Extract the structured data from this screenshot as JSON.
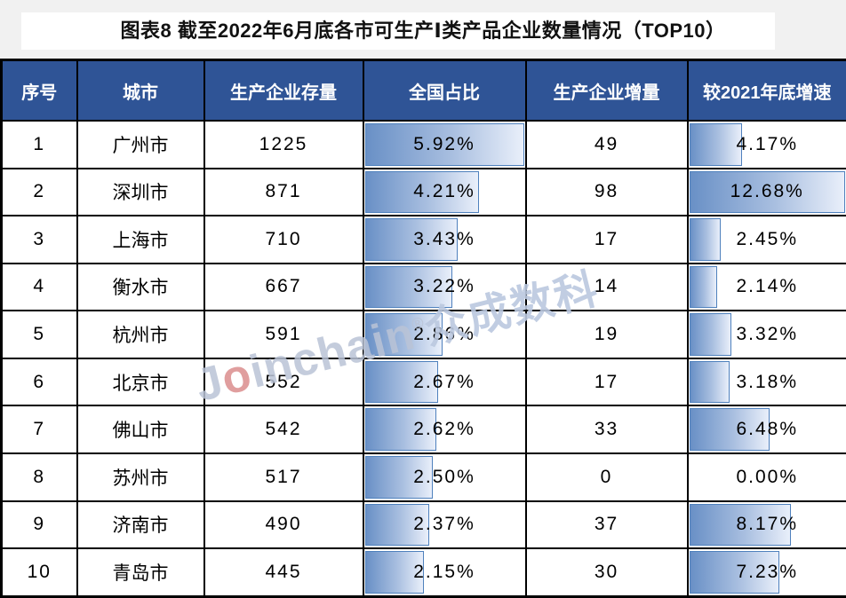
{
  "page": {
    "background": "#f1f1f1"
  },
  "header": {
    "title": "图表8 截至2022年6月底各市可生产Ⅰ类产品企业数量情况（TOP10）"
  },
  "watermark": {
    "latin_pre": "J",
    "latin_o": "o",
    "latin_post": "inchain",
    "reg": "®",
    "cn": "众成数科"
  },
  "colors": {
    "header_bg": "#2f5496",
    "header_text": "#ffffff",
    "grid_border": "#000000",
    "bar_border": "#4f81bd",
    "bar_gradient_start": "#6990c6",
    "bar_gradient_end": "#e9effa",
    "page_bg": "#f1f1f1"
  },
  "table": {
    "headers": [
      "序号",
      "城市",
      "生产企业存量",
      "全国占比",
      "生产企业增量",
      "较2021年底增速"
    ],
    "share_axis_max": 5.92,
    "growth_axis_max": 12.68,
    "rows": [
      {
        "rank": "1",
        "city": "广州市",
        "stock": "1225",
        "share_label": "5.92%",
        "share": 5.92,
        "increment": "49",
        "growth_label": "4.17%",
        "growth": 4.17
      },
      {
        "rank": "2",
        "city": "深圳市",
        "stock": "871",
        "share_label": "4.21%",
        "share": 4.21,
        "increment": "98",
        "growth_label": "12.68%",
        "growth": 12.68
      },
      {
        "rank": "3",
        "city": "上海市",
        "stock": "710",
        "share_label": "3.43%",
        "share": 3.43,
        "increment": "17",
        "growth_label": "2.45%",
        "growth": 2.45
      },
      {
        "rank": "4",
        "city": "衡水市",
        "stock": "667",
        "share_label": "3.22%",
        "share": 3.22,
        "increment": "14",
        "growth_label": "2.14%",
        "growth": 2.14
      },
      {
        "rank": "5",
        "city": "杭州市",
        "stock": "591",
        "share_label": "2.86%",
        "share": 2.86,
        "increment": "19",
        "growth_label": "3.32%",
        "growth": 3.32
      },
      {
        "rank": "6",
        "city": "北京市",
        "stock": "552",
        "share_label": "2.67%",
        "share": 2.67,
        "increment": "17",
        "growth_label": "3.18%",
        "growth": 3.18
      },
      {
        "rank": "7",
        "city": "佛山市",
        "stock": "542",
        "share_label": "2.62%",
        "share": 2.62,
        "increment": "33",
        "growth_label": "6.48%",
        "growth": 6.48
      },
      {
        "rank": "8",
        "city": "苏州市",
        "stock": "517",
        "share_label": "2.50%",
        "share": 2.5,
        "increment": "0",
        "growth_label": "0.00%",
        "growth": 0
      },
      {
        "rank": "9",
        "city": "济南市",
        "stock": "490",
        "share_label": "2.37%",
        "share": 2.37,
        "increment": "37",
        "growth_label": "8.17%",
        "growth": 8.17
      },
      {
        "rank": "10",
        "city": "青岛市",
        "stock": "445",
        "share_label": "2.15%",
        "share": 2.15,
        "increment": "30",
        "growth_label": "7.23%",
        "growth": 7.23
      }
    ]
  },
  "chart_data": {
    "type": "table",
    "title": "图表8 截至2022年6月底各市可生产Ⅰ类产品企业数量情况（TOP10）",
    "columns": [
      "序号",
      "城市",
      "生产企业存量",
      "全国占比",
      "生产企业增量",
      "较2021年底增速"
    ],
    "rows": [
      [
        1,
        "广州市",
        1225,
        "5.92%",
        49,
        "4.17%"
      ],
      [
        2,
        "深圳市",
        871,
        "4.21%",
        98,
        "12.68%"
      ],
      [
        3,
        "上海市",
        710,
        "3.43%",
        17,
        "2.45%"
      ],
      [
        4,
        "衡水市",
        667,
        "3.22%",
        14,
        "2.14%"
      ],
      [
        5,
        "杭州市",
        591,
        "2.86%",
        19,
        "3.32%"
      ],
      [
        6,
        "北京市",
        552,
        "2.67%",
        17,
        "3.18%"
      ],
      [
        7,
        "佛山市",
        542,
        "2.62%",
        33,
        "6.48%"
      ],
      [
        8,
        "苏州市",
        517,
        "2.50%",
        0,
        "0.00%"
      ],
      [
        9,
        "济南市",
        490,
        "2.37%",
        37,
        "8.17%"
      ],
      [
        10,
        "青岛市",
        445,
        "2.15%",
        30,
        "7.23%"
      ]
    ],
    "bar_columns": [
      {
        "column": "全国占比",
        "unit": "%",
        "scale_max": 5.92,
        "values": [
          5.92,
          4.21,
          3.43,
          3.22,
          2.86,
          2.67,
          2.62,
          2.5,
          2.37,
          2.15
        ]
      },
      {
        "column": "较2021年底增速",
        "unit": "%",
        "scale_max": 12.68,
        "values": [
          4.17,
          12.68,
          2.45,
          2.14,
          3.32,
          3.18,
          6.48,
          0.0,
          8.17,
          7.23
        ]
      }
    ],
    "layout": {
      "bars": "left-anchored gradient data bars inside cells",
      "legend": "none",
      "grid": "black cell borders"
    }
  }
}
